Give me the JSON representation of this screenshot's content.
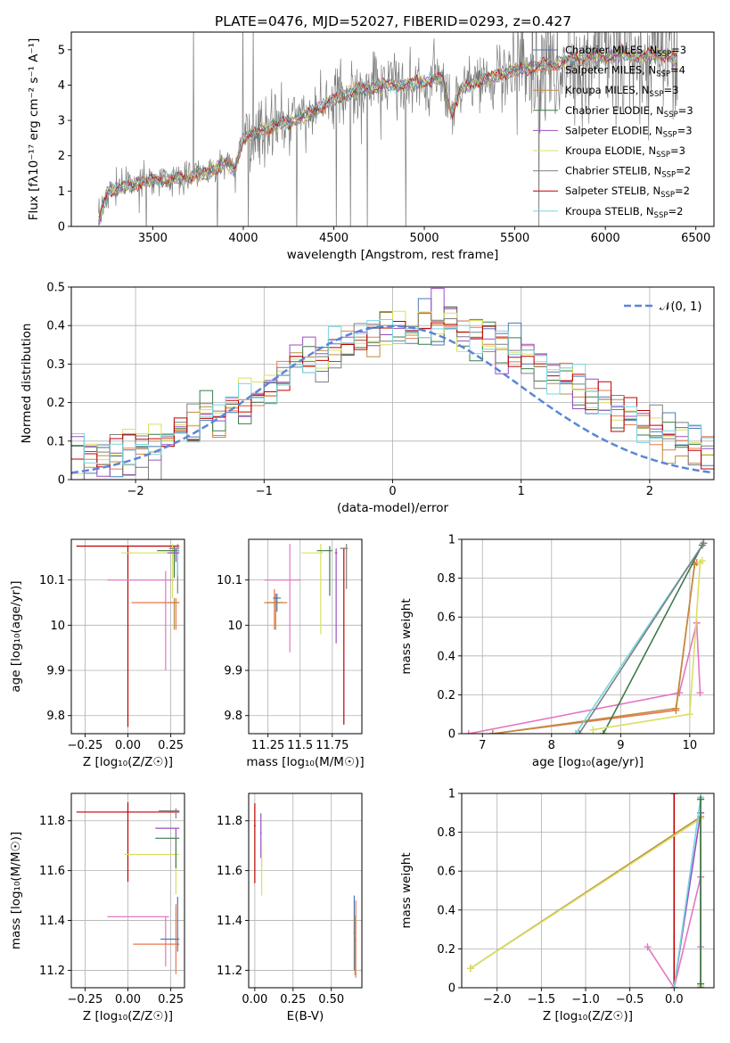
{
  "figure_title": "PLATE=0476, MJD=52027, FIBERID=0293, z=0.427",
  "colors": {
    "Chabrier MILES": "#4a78b8",
    "Salpeter MILES": "#e8794a",
    "Kroupa MILES": "#c08a40",
    "Chabrier ELODIE": "#3e7a4a",
    "Salpeter ELODIE": "#9b4fc0",
    "Kroupa ELODIE": "#d8e060",
    "Chabrier STELIB": "#7f7f7f",
    "Salpeter STELIB": "#c00000",
    "Kroupa STELIB": "#78d4e0",
    "Normal": "#5b86d6",
    "pink": "#e377c2"
  },
  "chart_data": [
    {
      "id": "spectrum",
      "type": "line",
      "xlabel": "wavelength [Angstrom, rest frame]",
      "ylabel": "Flux [f_λ10^{-17} erg cm^{-2} s^{-1} A^{-1}]",
      "xlim": [
        3050,
        6600
      ],
      "ylim": [
        0,
        5.5
      ],
      "xticks": [
        3500,
        4000,
        4500,
        5000,
        5500,
        6000,
        6500
      ],
      "yticks": [
        0,
        1,
        2,
        3,
        4,
        5
      ],
      "grid": false,
      "legend_position": "upper-right",
      "legend": [
        {
          "label": "Chabrier MILES, N",
          "sub": "SSP",
          "suffix": "=3",
          "color_key": "Chabrier MILES"
        },
        {
          "label": "Salpeter MILES, N",
          "sub": "SSP",
          "suffix": "=4",
          "color_key": "Salpeter MILES"
        },
        {
          "label": "Kroupa MILES, N",
          "sub": "SSP",
          "suffix": "=3",
          "color_key": "Kroupa MILES"
        },
        {
          "label": "Chabrier ELODIE, N",
          "sub": "SSP",
          "suffix": "=3",
          "color_key": "Chabrier ELODIE"
        },
        {
          "label": "Salpeter ELODIE, N",
          "sub": "SSP",
          "suffix": "=3",
          "color_key": "Salpeter ELODIE"
        },
        {
          "label": "Kroupa ELODIE, N",
          "sub": "SSP",
          "suffix": "=3",
          "color_key": "Kroupa ELODIE"
        },
        {
          "label": "Chabrier STELIB, N",
          "sub": "SSP",
          "suffix": "=2",
          "color_key": "Chabrier STELIB"
        },
        {
          "label": "Salpeter STELIB, N",
          "sub": "SSP",
          "suffix": "=2",
          "color_key": "Salpeter STELIB"
        },
        {
          "label": "Kroupa STELIB, N",
          "sub": "SSP",
          "suffix": "=2",
          "color_key": "Kroupa STELIB"
        }
      ],
      "continuum": {
        "x": [
          3200,
          3250,
          3400,
          3500,
          3600,
          3700,
          3800,
          3900,
          3950,
          4000,
          4100,
          4200,
          4300,
          4400,
          4500,
          4600,
          4700,
          4800,
          4900,
          5000,
          5100,
          5150,
          5200,
          5300,
          5400,
          5500,
          5600,
          5700,
          5800,
          5900,
          6000,
          6100,
          6200,
          6300,
          6400
        ],
        "y": [
          0.1,
          1.0,
          1.2,
          1.3,
          1.35,
          1.4,
          1.5,
          1.8,
          1.6,
          2.5,
          2.7,
          2.9,
          3.0,
          3.3,
          3.6,
          3.8,
          3.9,
          4.0,
          4.0,
          4.1,
          4.2,
          3.2,
          3.9,
          4.1,
          4.3,
          4.4,
          4.5,
          4.6,
          4.7,
          4.8,
          4.8,
          4.9,
          4.8,
          4.9,
          4.7
        ]
      },
      "data_noise_amplitude": 0.5
    },
    {
      "id": "residuals",
      "type": "histogram",
      "xlabel": "(data-model)/error",
      "ylabel": "Normed distribution",
      "xlim": [
        -2.5,
        2.5
      ],
      "ylim": [
        0,
        0.5
      ],
      "xticks": [
        -2,
        -1,
        0,
        1,
        2
      ],
      "yticks": [
        0.0,
        0.1,
        0.2,
        0.3,
        0.4,
        0.5
      ],
      "grid": true,
      "bin_width": 0.1,
      "reference_curve": {
        "label": "𝒩(0, 1)",
        "mean": 0,
        "sigma": 1,
        "color_key": "Normal",
        "style": "dashed"
      },
      "legend_position": "upper-right"
    },
    {
      "id": "age-vs-Z",
      "type": "errorbar",
      "xlabel": "Z [log₁₀(Z/Z☉)]",
      "ylabel": "age  [log₁₀(age/yr)]",
      "xlim": [
        -0.33,
        0.33
      ],
      "ylim": [
        9.76,
        10.19
      ],
      "xticks": [
        -0.25,
        0.0,
        0.25
      ],
      "xtick_labels": [
        "−0.25",
        "0.00",
        "0.25"
      ],
      "yticks": [
        9.8,
        9.9,
        10.0,
        10.1
      ],
      "grid": true,
      "points": [
        {
          "c": "Salpeter STELIB",
          "x": 0.0,
          "xerr": [
            0.3,
            0.3
          ],
          "y": 10.175,
          "yerr": [
            0.4,
            0.0
          ]
        },
        {
          "c": "pink",
          "x": 0.22,
          "xerr": [
            0.34,
            0.05
          ],
          "y": 10.1,
          "yerr": [
            0.2,
            0.02
          ]
        },
        {
          "c": "Kroupa ELODIE",
          "x": 0.26,
          "xerr": [
            0.3,
            0.04
          ],
          "y": 10.16,
          "yerr": [
            0.1,
            0.02
          ]
        },
        {
          "c": "Chabrier ELODIE",
          "x": 0.27,
          "xerr": [
            0.1,
            0.03
          ],
          "y": 10.165,
          "yerr": [
            0.06,
            0.01
          ]
        },
        {
          "c": "Chabrier STELIB",
          "x": 0.29,
          "xerr": [
            0.05,
            0.01
          ],
          "y": 10.17,
          "yerr": [
            0.1,
            0.01
          ]
        },
        {
          "c": "Kroupa STELIB",
          "x": 0.29,
          "xerr": [
            0.02,
            0.01
          ],
          "y": 10.16,
          "yerr": [
            0.05,
            0.01
          ]
        },
        {
          "c": "Salpeter MILES",
          "x": 0.28,
          "xerr": [
            0.26,
            0.02
          ],
          "y": 10.05,
          "yerr": [
            0.06,
            0.01
          ]
        },
        {
          "c": "Kroupa MILES",
          "x": 0.27,
          "xerr": [
            0.03,
            0.03
          ],
          "y": 10.05,
          "yerr": [
            0.06,
            0.01
          ]
        },
        {
          "c": "Salpeter ELODIE",
          "x": 0.28,
          "xerr": [
            0.05,
            0.02
          ],
          "y": 10.16,
          "yerr": [
            0.02,
            0.01
          ]
        }
      ]
    },
    {
      "id": "age-vs-mass",
      "type": "errorbar",
      "xlabel": "mass [log₁₀(M/M☉)]",
      "ylabel": "",
      "xlim": [
        11.1,
        11.98
      ],
      "ylim": [
        9.76,
        10.19
      ],
      "xticks": [
        11.25,
        11.5,
        11.75
      ],
      "yticks": [
        9.8,
        9.9,
        10.0,
        10.1
      ],
      "grid": true,
      "points": [
        {
          "c": "Salpeter STELIB",
          "x": 11.84,
          "xerr": [
            0.01,
            0.01
          ],
          "y": 10.17,
          "yerr": [
            0.39,
            0.0
          ]
        },
        {
          "c": "pink",
          "x": 11.42,
          "xerr": [
            0.2,
            0.08
          ],
          "y": 10.1,
          "yerr": [
            0.16,
            0.08
          ]
        },
        {
          "c": "Kroupa ELODIE",
          "x": 11.66,
          "xerr": [
            0.15,
            0.02
          ],
          "y": 10.16,
          "yerr": [
            0.18,
            0.02
          ]
        },
        {
          "c": "Chabrier ELODIE",
          "x": 11.73,
          "xerr": [
            0.1,
            0.02
          ],
          "y": 10.165,
          "yerr": [
            0.1,
            0.01
          ]
        },
        {
          "c": "Chabrier STELIB",
          "x": 11.86,
          "xerr": [
            0.05,
            0.01
          ],
          "y": 10.17,
          "yerr": [
            0.09,
            0.01
          ]
        },
        {
          "c": "Salpeter ELODIE",
          "x": 11.78,
          "xerr": [
            0.01,
            0.01
          ],
          "y": 10.16,
          "yerr": [
            0.2,
            0.01
          ]
        },
        {
          "c": "Salpeter MILES",
          "x": 11.3,
          "xerr": [
            0.08,
            0.1
          ],
          "y": 10.05,
          "yerr": [
            0.06,
            0.03
          ]
        },
        {
          "c": "Kroupa MILES",
          "x": 11.31,
          "xerr": [
            0.07,
            0.06
          ],
          "y": 10.05,
          "yerr": [
            0.06,
            0.02
          ]
        },
        {
          "c": "Chabrier MILES",
          "x": 11.32,
          "xerr": [
            0.03,
            0.03
          ],
          "y": 10.06,
          "yerr": [
            0.03,
            0.01
          ]
        }
      ]
    },
    {
      "id": "mass-weight-vs-age",
      "type": "line",
      "xlabel": "age  [log₁₀(age/yr)]",
      "ylabel": "mass weight",
      "xlim": [
        6.7,
        10.35
      ],
      "ylim": [
        0,
        1.0
      ],
      "xticks": [
        7,
        8,
        9,
        10
      ],
      "yticks": [
        0.0,
        0.2,
        0.4,
        0.6,
        0.8,
        1.0
      ],
      "grid": true,
      "series": [
        {
          "c": "pink",
          "x": [
            6.8,
            9.85,
            10.1,
            10.15
          ],
          "y": [
            0.0,
            0.21,
            0.57,
            0.21
          ]
        },
        {
          "c": "Salpeter MILES",
          "x": [
            7.15,
            9.8,
            10.07,
            10.1
          ],
          "y": [
            0.0,
            0.12,
            0.87,
            0.88
          ]
        },
        {
          "c": "Kroupa MILES",
          "x": [
            7.15,
            9.8,
            10.07
          ],
          "y": [
            0.0,
            0.13,
            0.87
          ]
        },
        {
          "c": "Chabrier ELODIE",
          "x": [
            8.75,
            10.18
          ],
          "y": [
            0.0,
            0.97
          ]
        },
        {
          "c": "Kroupa STELIB",
          "x": [
            8.35,
            10.2
          ],
          "y": [
            0.0,
            0.98
          ]
        },
        {
          "c": "Chabrier STELIB",
          "x": [
            8.4,
            10.2
          ],
          "y": [
            0.0,
            0.98
          ]
        },
        {
          "c": "Kroupa ELODIE",
          "x": [
            8.6,
            10.0,
            10.15,
            10.18
          ],
          "y": [
            0.02,
            0.1,
            0.88,
            0.89
          ]
        }
      ]
    },
    {
      "id": "mass-vs-Z",
      "type": "errorbar",
      "xlabel": "Z [log₁₀(Z/Z☉)]",
      "ylabel": "mass [log₁₀(M/M☉)]",
      "xlim": [
        -0.33,
        0.33
      ],
      "ylim": [
        11.13,
        11.91
      ],
      "xticks": [
        -0.25,
        0.0,
        0.25
      ],
      "xtick_labels": [
        "−0.25",
        "0.00",
        "0.25"
      ],
      "yticks": [
        11.2,
        11.4,
        11.6,
        11.8
      ],
      "grid": true,
      "points": [
        {
          "c": "Salpeter STELIB",
          "x": 0.0,
          "xerr": [
            0.3,
            0.3
          ],
          "y": 11.835,
          "yerr": [
            0.28,
            0.04
          ]
        },
        {
          "c": "pink",
          "x": 0.22,
          "xerr": [
            0.34,
            0.02
          ],
          "y": 11.415,
          "yerr": [
            0.2,
            0.0
          ]
        },
        {
          "c": "Kroupa ELODIE",
          "x": 0.28,
          "xerr": [
            0.3,
            0.02
          ],
          "y": 11.665,
          "yerr": [
            0.16,
            0.0
          ]
        },
        {
          "c": "Chabrier ELODIE",
          "x": 0.28,
          "xerr": [
            0.12,
            0.02
          ],
          "y": 11.73,
          "yerr": [
            0.12,
            0.0
          ]
        },
        {
          "c": "Salpeter ELODIE",
          "x": 0.28,
          "xerr": [
            0.12,
            0.02
          ],
          "y": 11.77,
          "yerr": [
            0.04,
            0.0
          ]
        },
        {
          "c": "Chabrier STELIB",
          "x": 0.28,
          "xerr": [
            0.1,
            0.02
          ],
          "y": 11.84,
          "yerr": [
            0.03,
            0.01
          ]
        },
        {
          "c": "Salpeter MILES",
          "x": 0.28,
          "xerr": [
            0.25,
            0.02
          ],
          "y": 11.305,
          "yerr": [
            0.12,
            0.16
          ]
        },
        {
          "c": "Chabrier MILES",
          "x": 0.29,
          "xerr": [
            0.1,
            0.01
          ],
          "y": 11.325,
          "yerr": [
            0.05,
            0.17
          ]
        }
      ]
    },
    {
      "id": "mass-vs-EBV",
      "type": "errorbar",
      "xlabel": "E(B-V)",
      "ylabel": "",
      "xlim": [
        -0.04,
        0.7
      ],
      "ylim": [
        11.13,
        11.91
      ],
      "xticks": [
        0.0,
        0.25,
        0.5
      ],
      "xtick_labels": [
        "0.00",
        "0.25",
        "0.50"
      ],
      "yticks": [
        11.2,
        11.4,
        11.6,
        11.8
      ],
      "grid": true,
      "points": [
        {
          "c": "Salpeter STELIB",
          "x": 0.0,
          "xerr": [
            0.005,
            0.005
          ],
          "y": 11.78,
          "yerr": [
            0.23,
            0.09
          ]
        },
        {
          "c": "Salpeter ELODIE",
          "x": 0.04,
          "xerr": [
            0.005,
            0.005
          ],
          "y": 11.75,
          "yerr": [
            0.1,
            0.08
          ]
        },
        {
          "c": "Kroupa ELODIE",
          "x": 0.045,
          "xerr": [
            0.005,
            0.005
          ],
          "y": 11.62,
          "yerr": [
            0.12,
            0.1
          ]
        },
        {
          "c": "Chabrier MILES",
          "x": 0.65,
          "xerr": [
            0.005,
            0.005
          ],
          "y": 11.35,
          "yerr": [
            0.15,
            0.15
          ]
        },
        {
          "c": "Salpeter MILES",
          "x": 0.66,
          "xerr": [
            0.005,
            0.005
          ],
          "y": 11.32,
          "yerr": [
            0.15,
            0.16
          ]
        },
        {
          "c": "Kroupa MILES",
          "x": 0.655,
          "xerr": [
            0.005,
            0.005
          ],
          "y": 11.3,
          "yerr": [
            0.12,
            0.12
          ]
        }
      ]
    },
    {
      "id": "mass-weight-vs-Z",
      "type": "line",
      "xlabel": "Z [log₁₀(Z/Z☉)]",
      "ylabel": "mass weight",
      "xlim": [
        -2.4,
        0.45
      ],
      "ylim": [
        0,
        1.0
      ],
      "xticks": [
        -2.0,
        -1.5,
        -1.0,
        -0.5,
        0.0
      ],
      "xtick_labels": [
        "−2.0",
        "−1.5",
        "−1.0",
        "−0.5",
        "0.0"
      ],
      "yticks": [
        0.0,
        0.2,
        0.4,
        0.6,
        0.8,
        1.0
      ],
      "grid": true,
      "series": [
        {
          "c": "Salpeter STELIB",
          "x": [
            0.0,
            0.0
          ],
          "y": [
            0.0,
            1.0
          ]
        },
        {
          "c": "Kroupa MILES",
          "x": [
            -2.3,
            0.3,
            0.3
          ],
          "y": [
            0.1,
            0.88,
            0.0
          ]
        },
        {
          "c": "Kroupa ELODIE",
          "x": [
            -2.3,
            0.3,
            0.3
          ],
          "y": [
            0.1,
            0.87,
            0.01
          ]
        },
        {
          "c": "pink",
          "x": [
            -0.3,
            0.0,
            0.3,
            0.3
          ],
          "y": [
            0.21,
            0.0,
            0.57,
            0.21
          ]
        },
        {
          "c": "Salpeter ELODIE",
          "x": [
            0.0,
            0.3
          ],
          "y": [
            0.0,
            0.9
          ]
        },
        {
          "c": "Kroupa STELIB",
          "x": [
            0.0,
            0.3
          ],
          "y": [
            0.0,
            0.98
          ]
        },
        {
          "c": "Chabrier STELIB",
          "x": [
            0.3,
            0.3
          ],
          "y": [
            0.0,
            0.97
          ]
        },
        {
          "c": "Chabrier ELODIE",
          "x": [
            0.3,
            0.3
          ],
          "y": [
            0.02,
            0.97
          ]
        }
      ]
    }
  ]
}
